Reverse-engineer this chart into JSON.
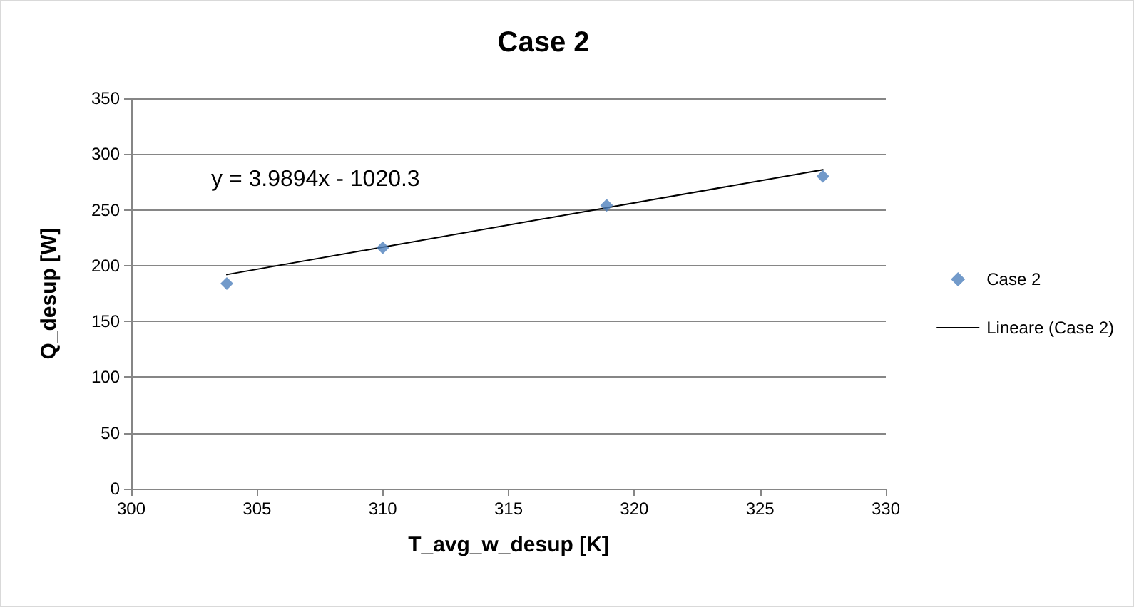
{
  "chart_data": {
    "type": "scatter",
    "title": "Case 2",
    "xlabel": "T_avg_w_desup [K]",
    "ylabel": "Q_desup [W]",
    "series": [
      {
        "name": "Case 2",
        "color": "#4f81bd",
        "marker": "diamond",
        "x": [
          303.8,
          310.0,
          318.9,
          327.5
        ],
        "values": [
          184,
          216,
          254,
          280
        ]
      },
      {
        "name": "Lineare (Case 2)",
        "type": "line",
        "color": "#000000",
        "marker": "none",
        "line_style": "solid",
        "x": [
          303.8,
          327.5
        ],
        "values": [
          192,
          286
        ]
      }
    ],
    "annotations": [
      "y = 3.9894x - 1020.3"
    ],
    "xlim": [
      300,
      330
    ],
    "xticks": [
      300,
      305,
      310,
      315,
      320,
      325,
      330
    ],
    "ylim": [
      0,
      350
    ],
    "yticks": [
      0,
      50,
      100,
      150,
      200,
      250,
      300,
      350
    ],
    "grid": "y",
    "legend": "right"
  }
}
